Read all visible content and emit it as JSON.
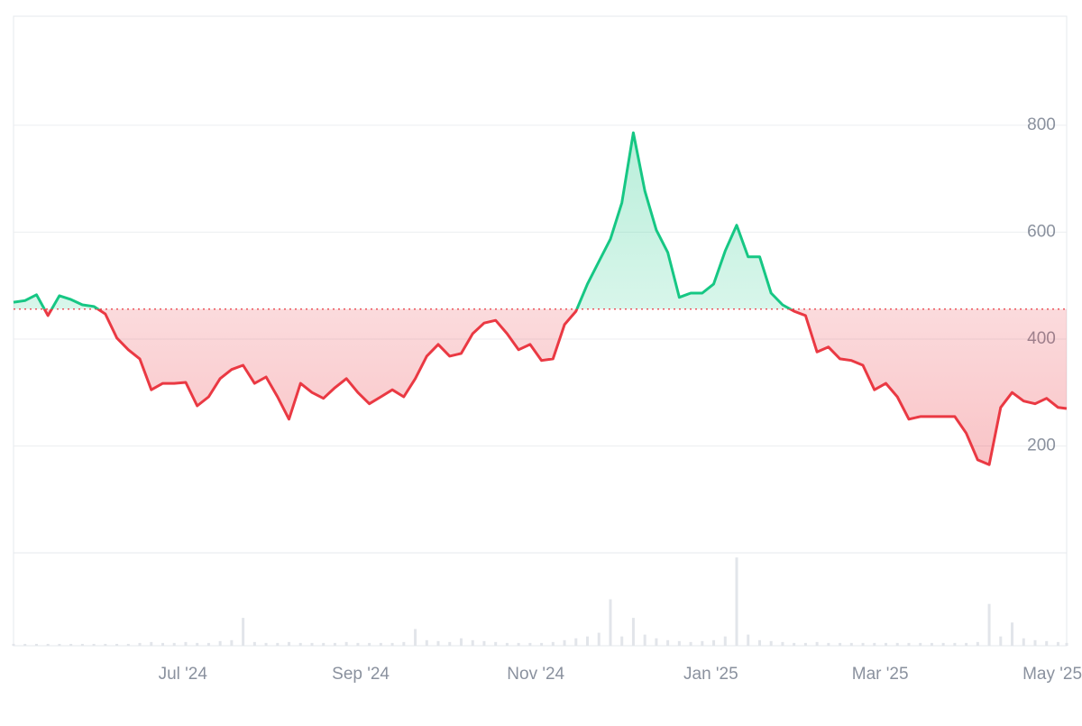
{
  "chart_data": {
    "type": "line",
    "x": [
      0,
      4,
      8,
      12,
      16,
      20,
      24,
      28,
      32,
      36,
      40,
      44,
      48,
      52,
      56,
      60,
      64,
      68,
      72,
      76,
      80,
      84,
      88,
      92,
      96,
      100,
      104,
      108,
      112,
      116,
      120,
      124,
      128,
      132,
      136,
      140,
      144,
      148,
      152,
      156,
      160,
      164,
      168,
      172,
      176,
      180,
      184,
      188,
      192,
      196,
      200,
      204,
      208,
      212,
      216,
      220,
      224,
      228,
      232,
      236,
      240,
      244,
      248,
      252,
      256,
      260,
      264,
      268,
      272,
      276,
      280,
      284,
      288,
      292,
      296,
      300,
      304,
      308,
      312,
      316,
      320,
      324,
      328,
      332,
      336,
      340,
      344,
      348,
      352,
      356,
      360,
      364,
      367
    ],
    "values": [
      469,
      472,
      483,
      444,
      481,
      474,
      464,
      461,
      447,
      402,
      380,
      363,
      305,
      317,
      317,
      319,
      275,
      292,
      326,
      343,
      351,
      317,
      329,
      292,
      250,
      317,
      300,
      289,
      309,
      326,
      300,
      279,
      292,
      305,
      292,
      326,
      368,
      390,
      368,
      373,
      410,
      430,
      435,
      410,
      380,
      390,
      360,
      363,
      427,
      452,
      503,
      545,
      587,
      655,
      786,
      677,
      604,
      562,
      478,
      486,
      486,
      503,
      565,
      613,
      554,
      554,
      486,
      464,
      452,
      444,
      376,
      385,
      363,
      360,
      351,
      305,
      317,
      292,
      250,
      255,
      255,
      255,
      255,
      224,
      174,
      165,
      272,
      300,
      284,
      279,
      289,
      272,
      270
    ],
    "volume": [
      2,
      2,
      2,
      2,
      2,
      2,
      2,
      2,
      2,
      2,
      2,
      3,
      4,
      3,
      3,
      4,
      3,
      3,
      5,
      6,
      30,
      4,
      3,
      3,
      4,
      3,
      3,
      3,
      3,
      4,
      3,
      3,
      3,
      3,
      4,
      18,
      6,
      5,
      4,
      8,
      6,
      5,
      4,
      3,
      3,
      3,
      3,
      4,
      6,
      8,
      10,
      14,
      50,
      10,
      30,
      12,
      8,
      6,
      5,
      4,
      5,
      6,
      10,
      95,
      12,
      6,
      5,
      4,
      3,
      3,
      4,
      3,
      3,
      3,
      3,
      3,
      3,
      3,
      3,
      3,
      3,
      3,
      3,
      3,
      4,
      45,
      10,
      25,
      8,
      6,
      5,
      4,
      3
    ],
    "baseline": 456,
    "xlim": [
      0,
      367
    ],
    "xticks": [
      {
        "value": 59,
        "label": "Jul '24"
      },
      {
        "value": 121,
        "label": "Sep '24"
      },
      {
        "value": 182,
        "label": "Nov '24"
      },
      {
        "value": 243,
        "label": "Jan '25"
      },
      {
        "value": 302,
        "label": "Mar '25"
      },
      {
        "value": 362,
        "label": "May '25"
      }
    ],
    "ylim": [
      0,
      1004
    ],
    "yticks": [
      200,
      400,
      600,
      800
    ],
    "vlim": [
      0,
      100
    ],
    "up_color": "#16c784",
    "down_color": "#ea3943",
    "grid": true
  }
}
